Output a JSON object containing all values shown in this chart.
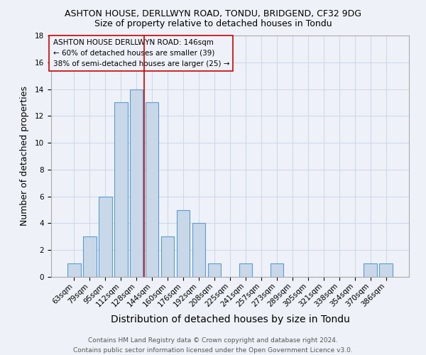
{
  "title": "ASHTON HOUSE, DERLLWYN ROAD, TONDU, BRIDGEND, CF32 9DG",
  "subtitle": "Size of property relative to detached houses in Tondu",
  "xlabel": "Distribution of detached houses by size in Tondu",
  "ylabel": "Number of detached properties",
  "categories": [
    "63sqm",
    "79sqm",
    "95sqm",
    "112sqm",
    "128sqm",
    "144sqm",
    "160sqm",
    "176sqm",
    "192sqm",
    "208sqm",
    "225sqm",
    "241sqm",
    "257sqm",
    "273sqm",
    "289sqm",
    "305sqm",
    "321sqm",
    "338sqm",
    "354sqm",
    "370sqm",
    "386sqm"
  ],
  "values": [
    1,
    3,
    6,
    13,
    14,
    13,
    3,
    5,
    4,
    1,
    0,
    1,
    0,
    1,
    0,
    0,
    0,
    0,
    0,
    1,
    1
  ],
  "bar_color": "#c8d8e8",
  "bar_edge_color": "#5b9bd5",
  "grid_color": "#d0d8e8",
  "background_color": "#eef2f8",
  "vline_x": 4.5,
  "vline_color": "#cc0000",
  "ylim": [
    0,
    18
  ],
  "yticks": [
    0,
    2,
    4,
    6,
    8,
    10,
    12,
    14,
    16,
    18
  ],
  "annotation_text": "ASHTON HOUSE DERLLWYN ROAD: 146sqm\n← 60% of detached houses are smaller (39)\n38% of semi-detached houses are larger (25) →",
  "footer": "Contains HM Land Registry data © Crown copyright and database right 2024.\nContains public sector information licensed under the Open Government Licence v3.0.",
  "title_fontsize": 9,
  "subtitle_fontsize": 9,
  "xlabel_fontsize": 10,
  "ylabel_fontsize": 9,
  "tick_fontsize": 7.5,
  "annotation_fontsize": 7.5,
  "footer_fontsize": 6.5
}
